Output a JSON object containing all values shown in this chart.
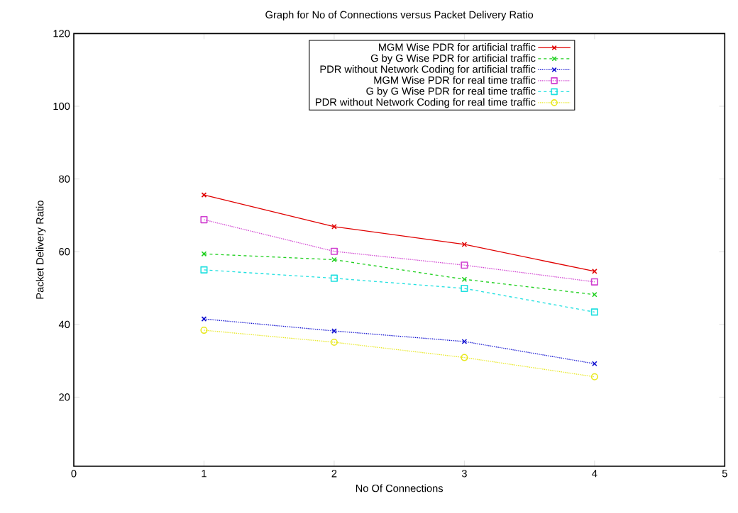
{
  "chart_data": {
    "type": "line",
    "title": "Graph for No of Connections versus Packet Delivery Ratio",
    "xlabel": "No Of Connections",
    "ylabel": "Packet Delivery Ratio",
    "x": [
      1,
      2,
      3,
      4
    ],
    "series": [
      {
        "name": "MGM Wise PDR for artificial traffic",
        "color": "#e00000",
        "marker": "cross",
        "line_style": "solid",
        "values": [
          75.6,
          66.9,
          62.0,
          54.6
        ]
      },
      {
        "name": "G by G Wise PDR for artificial traffic",
        "color": "#20d020",
        "marker": "cross",
        "line_style": "dashed",
        "values": [
          59.4,
          57.8,
          52.4,
          48.2
        ]
      },
      {
        "name": "PDR without Network Coding for artificial traffic",
        "color": "#1010d0",
        "marker": "cross",
        "line_style": "dotted",
        "values": [
          41.5,
          38.2,
          35.3,
          29.2
        ]
      },
      {
        "name": "MGM Wise PDR for real time traffic",
        "color": "#d040d0",
        "marker": "square",
        "line_style": "dotted",
        "values": [
          68.8,
          60.1,
          56.3,
          51.7
        ]
      },
      {
        "name": "G by G Wise PDR for real time traffic",
        "color": "#20e0e0",
        "marker": "square",
        "line_style": "dashed",
        "values": [
          55.0,
          52.7,
          49.9,
          43.4
        ]
      },
      {
        "name": "PDR without Network Coding for real time traffic",
        "color": "#e8e820",
        "marker": "circle",
        "line_style": "dotted",
        "values": [
          38.4,
          35.1,
          30.9,
          25.6
        ]
      }
    ],
    "xlim": [
      0,
      5
    ],
    "xticks": [
      0,
      1,
      2,
      3,
      4,
      5
    ],
    "ylim": [
      1,
      120
    ],
    "yticks": [
      20,
      40,
      60,
      80,
      100,
      120
    ],
    "grid": false,
    "legend": "top right"
  }
}
